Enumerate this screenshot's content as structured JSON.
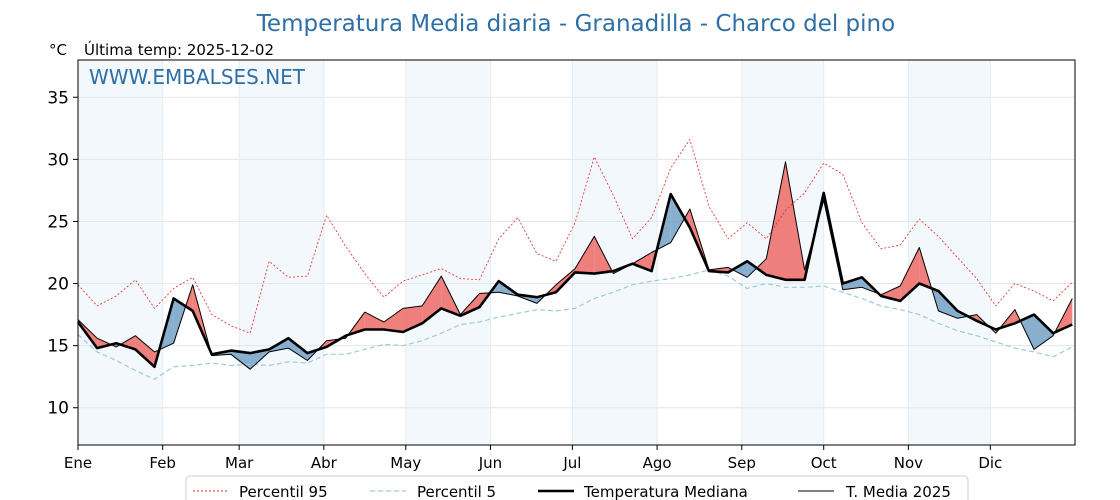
{
  "chart_data": {
    "type": "line",
    "title": "Temperatura Media diaria - Granadilla - Charco del pino",
    "unit_label": "°C",
    "last_temp_label": "Última temp: 2025-12-02",
    "watermark": "WWW.EMBALSES.NET",
    "ylim": [
      7,
      38
    ],
    "yticks": [
      10,
      15,
      20,
      25,
      30,
      35
    ],
    "xlim": [
      1,
      366
    ],
    "months": [
      {
        "label": "Ene",
        "day": 1
      },
      {
        "label": "Feb",
        "day": 32
      },
      {
        "label": "Mar",
        "day": 60
      },
      {
        "label": "Abr",
        "day": 91
      },
      {
        "label": "May",
        "day": 121
      },
      {
        "label": "Jun",
        "day": 152
      },
      {
        "label": "Jul",
        "day": 182
      },
      {
        "label": "Ago",
        "day": 213
      },
      {
        "label": "Sep",
        "day": 244
      },
      {
        "label": "Oct",
        "day": 274
      },
      {
        "label": "Nov",
        "day": 305
      },
      {
        "label": "Dic",
        "day": 335
      }
    ],
    "shaded_months": [
      {
        "from": 1,
        "to": 32
      },
      {
        "from": 60,
        "to": 91
      },
      {
        "from": 121,
        "to": 152
      },
      {
        "from": 182,
        "to": 213
      },
      {
        "from": 244,
        "to": 274
      },
      {
        "from": 305,
        "to": 335
      }
    ],
    "grid": true,
    "legend_position": "bottom-center",
    "legend": [
      {
        "key": "p95",
        "label": "Percentil 95"
      },
      {
        "key": "p5",
        "label": "Percentil 5"
      },
      {
        "key": "median",
        "label": "Temperatura Mediana"
      },
      {
        "key": "current",
        "label": "T. Media 2025"
      }
    ],
    "x": [
      1,
      8,
      15,
      22,
      29,
      36,
      43,
      50,
      57,
      64,
      71,
      78,
      85,
      92,
      99,
      106,
      113,
      120,
      127,
      134,
      141,
      148,
      155,
      162,
      169,
      176,
      183,
      190,
      197,
      204,
      211,
      218,
      225,
      232,
      239,
      246,
      253,
      260,
      267,
      274,
      281,
      288,
      295,
      302,
      309,
      316,
      323,
      330,
      337,
      344,
      351,
      358,
      365
    ],
    "series": [
      {
        "name": "Percentil 95",
        "key": "p95",
        "values": [
          19.9,
          18.2,
          19.0,
          20.3,
          18.0,
          19.6,
          20.5,
          17.5,
          16.6,
          16.0,
          21.8,
          20.5,
          20.6,
          25.5,
          23.0,
          20.8,
          18.9,
          20.2,
          20.7,
          21.2,
          20.4,
          20.3,
          23.6,
          25.3,
          22.4,
          21.8,
          24.9,
          30.2,
          27.1,
          23.6,
          25.3,
          29.3,
          31.6,
          26.2,
          23.6,
          24.9,
          23.6,
          25.9,
          27.3,
          29.7,
          28.8,
          24.9,
          22.8,
          23.1,
          25.2,
          23.8,
          22.1,
          20.4,
          18.2,
          20.0,
          19.4,
          18.6,
          20.1
        ]
      },
      {
        "name": "Percentil 5",
        "key": "p5",
        "values": [
          15.9,
          14.5,
          13.8,
          13.0,
          12.3,
          13.3,
          13.4,
          13.6,
          13.4,
          13.5,
          13.4,
          13.7,
          13.6,
          14.3,
          14.3,
          14.7,
          15.1,
          15.0,
          15.4,
          16.0,
          16.7,
          16.9,
          17.3,
          17.6,
          17.9,
          17.8,
          18.0,
          18.8,
          19.3,
          19.9,
          20.2,
          20.4,
          20.7,
          21.1,
          20.6,
          19.6,
          20.0,
          19.7,
          19.7,
          19.8,
          19.3,
          18.8,
          18.2,
          17.9,
          17.5,
          16.8,
          16.2,
          15.8,
          15.3,
          14.8,
          14.5,
          14.1,
          14.9
        ]
      },
      {
        "name": "Temperatura Mediana",
        "key": "median",
        "values": [
          16.9,
          14.8,
          15.2,
          14.7,
          13.3,
          18.8,
          17.8,
          14.3,
          14.6,
          14.4,
          14.7,
          15.6,
          14.4,
          14.9,
          15.8,
          16.3,
          16.3,
          16.1,
          16.8,
          18.0,
          17.4,
          18.1,
          20.2,
          19.1,
          18.9,
          19.3,
          20.9,
          20.8,
          21.0,
          21.6,
          21.0,
          27.2,
          24.5,
          21.0,
          20.9,
          21.8,
          20.7,
          20.3,
          20.3,
          27.3,
          20.0,
          20.5,
          19.0,
          18.6,
          20.0,
          19.4,
          17.8,
          17.0,
          16.3,
          16.8,
          17.5,
          16.0,
          16.7
        ]
      },
      {
        "name": "T. Media 2025",
        "key": "current",
        "values": [
          17.1,
          15.6,
          14.9,
          15.8,
          14.5,
          15.2,
          19.9,
          14.2,
          14.3,
          13.1,
          14.5,
          14.8,
          13.8,
          15.4,
          15.6,
          17.7,
          16.9,
          18.0,
          18.2,
          20.6,
          17.5,
          19.2,
          19.3,
          19.0,
          18.4,
          19.9,
          21.2,
          23.8,
          20.8,
          21.6,
          22.5,
          23.3,
          26.0,
          21.1,
          21.3,
          20.5,
          22.0,
          29.8,
          21.1,
          26.7,
          19.5,
          19.7,
          19.1,
          19.8,
          22.9,
          17.8,
          17.2,
          17.5,
          16.0,
          17.9,
          14.7,
          15.8,
          18.8
        ]
      }
    ]
  }
}
